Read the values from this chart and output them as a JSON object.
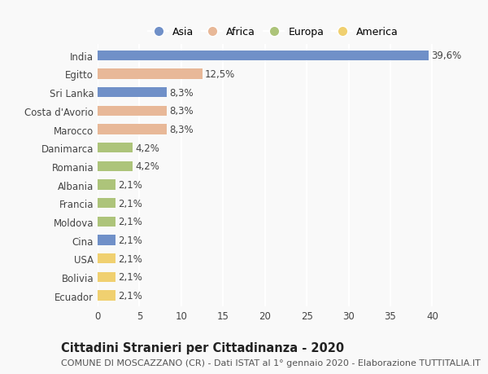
{
  "categories": [
    "India",
    "Egitto",
    "Sri Lanka",
    "Costa d'Avorio",
    "Marocco",
    "Danimarca",
    "Romania",
    "Albania",
    "Francia",
    "Moldova",
    "Cina",
    "USA",
    "Bolivia",
    "Ecuador"
  ],
  "values": [
    39.6,
    12.5,
    8.3,
    8.3,
    8.3,
    4.2,
    4.2,
    2.1,
    2.1,
    2.1,
    2.1,
    2.1,
    2.1,
    2.1
  ],
  "labels": [
    "39,6%",
    "12,5%",
    "8,3%",
    "8,3%",
    "8,3%",
    "4,2%",
    "4,2%",
    "2,1%",
    "2,1%",
    "2,1%",
    "2,1%",
    "2,1%",
    "2,1%",
    "2,1%"
  ],
  "continent": [
    "Asia",
    "Africa",
    "Asia",
    "Africa",
    "Africa",
    "Europa",
    "Europa",
    "Europa",
    "Europa",
    "Europa",
    "Asia",
    "America",
    "America",
    "America"
  ],
  "colors": {
    "Asia": "#7090c8",
    "Africa": "#e8b898",
    "Europa": "#adc47a",
    "America": "#f0d070"
  },
  "xlim": [
    0,
    42
  ],
  "xticks": [
    0,
    5,
    10,
    15,
    20,
    25,
    30,
    35,
    40
  ],
  "title": "Cittadini Stranieri per Cittadinanza - 2020",
  "subtitle": "COMUNE DI MOSCAZZANO (CR) - Dati ISTAT al 1° gennaio 2020 - Elaborazione TUTTITALIA.IT",
  "background_color": "#f9f9f9",
  "grid_color": "#ffffff",
  "bar_height": 0.55,
  "label_fontsize": 8.5,
  "tick_fontsize": 8.5,
  "title_fontsize": 10.5,
  "subtitle_fontsize": 8.0,
  "legend_labels": [
    "Asia",
    "Africa",
    "Europa",
    "America"
  ]
}
